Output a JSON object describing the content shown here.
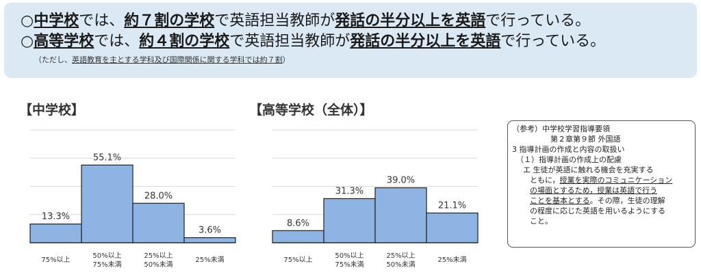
{
  "summary": {
    "line1": {
      "marker": "○",
      "bold1": "中学校",
      "t1": "では、",
      "bold2": "約７割の学校",
      "t2": "で英語担当教師が",
      "bold3": "発話の半分以上を英語",
      "t3": "で行っている。"
    },
    "line2": {
      "marker": "○",
      "bold1": "高等学校",
      "t1": "では、",
      "bold2": "約４割の学校",
      "t2": "で英語担当教師が",
      "bold3": "発話の半分以上を英語",
      "t3": "で行っている。"
    },
    "note": {
      "pre": "（ただし、",
      "underlined": "英語教育を主とする学科及び国際関係に関する学科では約７割",
      "post": "）"
    }
  },
  "chart_data": [
    {
      "type": "bar",
      "title": "【中学校】",
      "categories": [
        [
          "75%以上"
        ],
        [
          "50%以上",
          "75%未満"
        ],
        [
          "25%以上",
          "50%未満"
        ],
        [
          "25%未満"
        ]
      ],
      "values": [
        13.3,
        55.1,
        28.0,
        3.6
      ],
      "value_labels": [
        "13.3%",
        "55.1%",
        "28.0%",
        "3.6%"
      ],
      "ylim": [
        0,
        80
      ],
      "grid": true,
      "bar_color": "#8eb4e3"
    },
    {
      "type": "bar",
      "title": "【高等学校（全体）】",
      "categories": [
        [
          "75%以上"
        ],
        [
          "50%以上",
          "75%未満"
        ],
        [
          "25%以上",
          "50%未満"
        ],
        [
          "25%未満"
        ]
      ],
      "values": [
        8.6,
        31.3,
        39.0,
        21.1
      ],
      "value_labels": [
        "8.6%",
        "31.3%",
        "39.0%",
        "21.1%"
      ],
      "ylim": [
        0,
        80
      ],
      "grid": true,
      "bar_color": "#8eb4e3"
    }
  ],
  "reference": {
    "line1": "（参考）中学校学習指導要領",
    "line2": "第２章第９節 外国語",
    "line3": "3 指導計画の作成と内容の取扱い",
    "line4": "（１）指導計画の作成上の配慮",
    "line5": "エ 生徒が英語に触れる機会を充実する",
    "line6_pre": "ともに，",
    "line6_u": "授業を実際のコミュニケーション",
    "line7_u": "の場面とするため，授業は英語で行う",
    "line8_u": "ことを基本とする",
    "line8_post": "。その際，生徒の理解",
    "line9": "の程度に応じた英語を用いるようにする",
    "line10": "こと。"
  }
}
